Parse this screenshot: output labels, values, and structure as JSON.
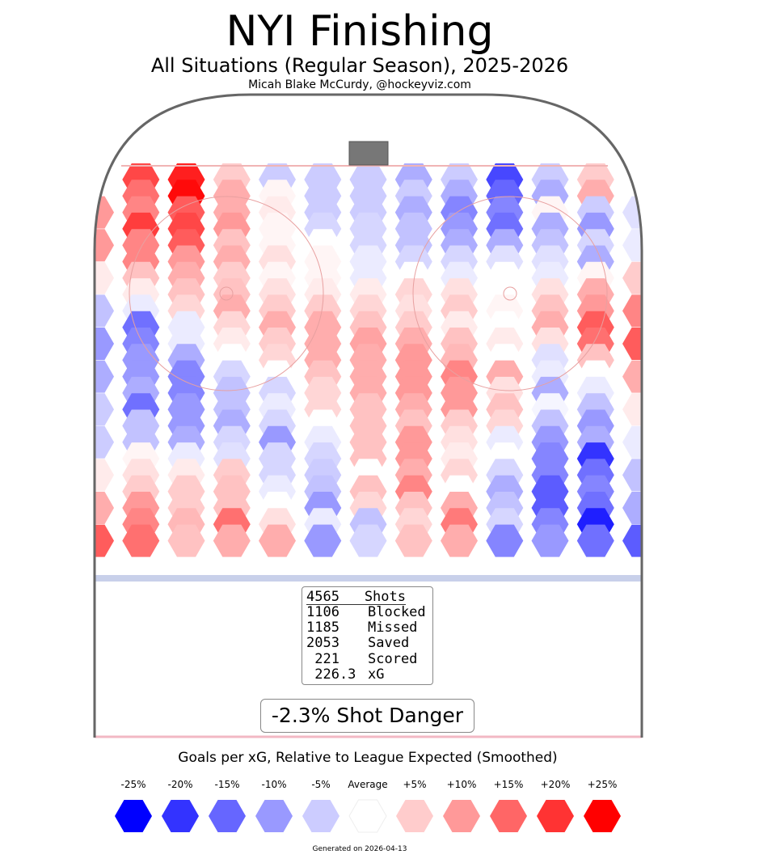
{
  "title": "NYI Finishing",
  "subtitle": "All Situations (Regular Season), 2025-2026",
  "byline": "Micah Blake McCurdy, @hockeyviz.com",
  "stats": {
    "rows": [
      {
        "num": "4565",
        "label": "Shots"
      },
      {
        "num": "1106",
        "label": "Blocked"
      },
      {
        "num": "1185",
        "label": "Missed"
      },
      {
        "num": "2053",
        "label": "Saved"
      },
      {
        "num": " 221",
        "label": "Scored"
      },
      {
        "num": " 226.3",
        "label": "xG"
      }
    ]
  },
  "danger_label": "-2.3% Shot Danger",
  "legend": {
    "title": "Goals per xG, Relative to League Expected (Smoothed)",
    "items": [
      {
        "label": "-25%",
        "value": -25,
        "color": "#0000ff"
      },
      {
        "label": "-20%",
        "value": -20,
        "color": "#3333ff"
      },
      {
        "label": "-15%",
        "value": -15,
        "color": "#6666ff"
      },
      {
        "label": "-10%",
        "value": -10,
        "color": "#9999ff"
      },
      {
        "label": "-5%",
        "value": -5,
        "color": "#ccccff"
      },
      {
        "label": "Average",
        "value": 0,
        "color": "#ffffff"
      },
      {
        "label": "+5%",
        "value": 5,
        "color": "#ffcccc"
      },
      {
        "label": "+10%",
        "value": 10,
        "color": "#ff9999"
      },
      {
        "label": "+15%",
        "value": 15,
        "color": "#ff6666"
      },
      {
        "label": "+20%",
        "value": 20,
        "color": "#ff3333"
      },
      {
        "label": "+25%",
        "value": 25,
        "color": "#ff0000"
      }
    ]
  },
  "generated": "Generated on 2026-04-13",
  "chart_data": {
    "type": "heatmap",
    "title": "NYI Finishing",
    "value_units": "% goals per xG relative to league expected",
    "hex_values": [
      [
        null,
        18,
        22,
        5,
        -5,
        -5,
        -5,
        -8,
        -5,
        -18,
        -5,
        5,
        null
      ],
      [
        null,
        14,
        24,
        8,
        1,
        -5,
        -5,
        -5,
        -8,
        -15,
        -8,
        8,
        null
      ],
      [
        10,
        12,
        16,
        8,
        2,
        -5,
        -5,
        -8,
        -12,
        -12,
        1,
        -5,
        -3
      ],
      [
        null,
        19,
        18,
        10,
        1,
        -4,
        -4,
        -6,
        -10,
        -14,
        -8,
        -10,
        null
      ],
      [
        10,
        12,
        16,
        6,
        1,
        0,
        -4,
        -6,
        -8,
        -8,
        -6,
        -4,
        -2
      ],
      [
        null,
        12,
        10,
        8,
        3,
        1,
        -2,
        -4,
        -4,
        -3,
        -3,
        -8,
        null
      ],
      [
        2,
        6,
        8,
        5,
        1,
        1,
        -2,
        0,
        -2,
        0,
        -2,
        1,
        5
      ],
      [
        null,
        2,
        6,
        6,
        3,
        2,
        2,
        4,
        3,
        0,
        3,
        8,
        null
      ],
      [
        -6,
        -2,
        4,
        8,
        5,
        5,
        4,
        3,
        5,
        1,
        6,
        10,
        12
      ],
      [
        null,
        -14,
        -2,
        4,
        8,
        8,
        6,
        5,
        2,
        0,
        8,
        16,
        null
      ],
      [
        -10,
        -12,
        -2,
        2,
        5,
        8,
        9,
        8,
        6,
        2,
        3,
        14,
        16
      ],
      [
        null,
        -10,
        -8,
        0,
        4,
        8,
        8,
        10,
        7,
        0,
        -3,
        6,
        null
      ],
      [
        -8,
        -10,
        -12,
        -4,
        0,
        6,
        8,
        10,
        12,
        8,
        -2,
        0,
        8
      ],
      [
        null,
        -8,
        -12,
        -6,
        -4,
        4,
        8,
        10,
        10,
        3,
        -8,
        -2,
        null
      ],
      [
        -5,
        -14,
        -10,
        -6,
        -2,
        4,
        6,
        8,
        10,
        6,
        -1,
        -6,
        2
      ],
      [
        null,
        -6,
        -10,
        -8,
        -4,
        0,
        6,
        6,
        5,
        4,
        -6,
        -10,
        null
      ],
      [
        -5,
        -6,
        -8,
        -4,
        -10,
        -2,
        6,
        10,
        3,
        -2,
        -10,
        -8,
        -2
      ],
      [
        null,
        1,
        -2,
        -3,
        -4,
        -4,
        6,
        10,
        2,
        0,
        -12,
        -20,
        null
      ],
      [
        2,
        3,
        2,
        5,
        -4,
        -5,
        0,
        8,
        4,
        -4,
        -12,
        -14,
        -6
      ],
      [
        null,
        5,
        5,
        6,
        -2,
        -6,
        6,
        12,
        0,
        -8,
        -16,
        -12,
        null
      ],
      [
        8,
        10,
        5,
        6,
        0,
        -10,
        4,
        6,
        8,
        -6,
        -16,
        -14,
        -8
      ],
      [
        null,
        12,
        7,
        14,
        3,
        -2,
        -6,
        4,
        13,
        -4,
        -12,
        -22,
        null
      ],
      [
        16,
        14,
        6,
        8,
        8,
        -10,
        -4,
        6,
        8,
        -12,
        -10,
        -14,
        -16
      ]
    ],
    "shot_counts": {
      "shots": 4565,
      "blocked": 1106,
      "missed": 1185,
      "saved": 2053,
      "scored": 221,
      "xg": 226.3
    },
    "shot_danger_pct": -2.3
  }
}
